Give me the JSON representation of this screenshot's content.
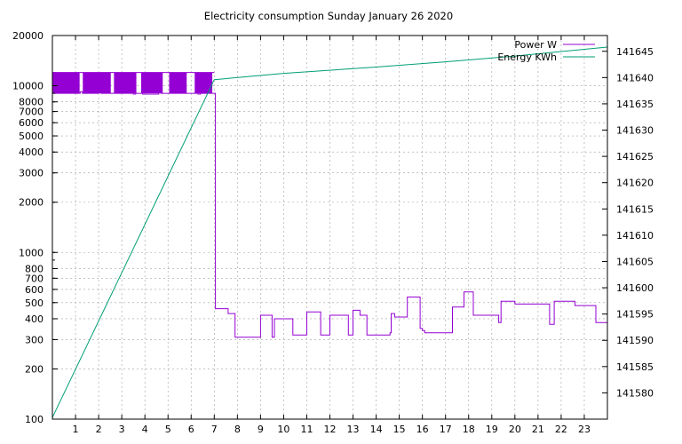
{
  "chart_data": {
    "type": "line",
    "title": "Electricity consumption Sunday January 26 2020",
    "x": {
      "range": [
        0,
        24
      ],
      "tick_labels": [
        "1",
        "2",
        "3",
        "4",
        "5",
        "6",
        "7",
        "8",
        "9",
        "10",
        "11",
        "12",
        "13",
        "14",
        "15",
        "16",
        "17",
        "18",
        "19",
        "20",
        "21",
        "22",
        "23"
      ],
      "grid": true
    },
    "y_left": {
      "scale": "log",
      "range": [
        100,
        20000
      ],
      "tick_labels": [
        "100",
        "200",
        "300",
        "400",
        "500",
        "600",
        "700",
        "800",
        "1000",
        "2000",
        "3000",
        "4000",
        "5000",
        "6000",
        "7000",
        "8000",
        "10000",
        "20000"
      ],
      "grid": true
    },
    "y_right": {
      "range": [
        141575,
        141648
      ],
      "tick_labels": [
        "141580",
        "141585",
        "141590",
        "141595",
        "141600",
        "141605",
        "141610",
        "141615",
        "141620",
        "141625",
        "141630",
        "141635",
        "141640",
        "141645"
      ]
    },
    "legend": {
      "placement": "top-right"
    },
    "series": [
      {
        "name": "Power W",
        "axis": "left",
        "color": "#9400d3",
        "oscillation": {
          "x_range": [
            0,
            7
          ],
          "low": 9000,
          "high": 12000
        },
        "x": [
          0,
          0.1,
          1.0,
          1.2,
          1.3,
          1.4,
          2.0,
          2.1,
          2.3,
          2.4,
          3.5,
          3.6,
          3.8,
          3.9,
          4.6,
          4.7,
          5.3,
          5.4,
          6.2,
          6.3,
          6.4,
          6.6,
          7.0,
          7.05,
          7.6,
          7.9,
          8.9,
          9.0,
          9.5,
          9.6,
          9.7,
          10.4,
          10.5,
          11.0,
          11.6,
          12.0,
          12.6,
          12.8,
          13.0,
          13.3,
          13.6,
          13.7,
          14.6,
          14.65,
          14.8,
          15.35,
          15.9,
          16.0,
          16.1,
          17.0,
          17.3,
          17.8,
          18.2,
          19.3,
          19.4,
          20.0,
          21.5,
          21.7,
          22.6,
          23.5,
          24.0
        ],
        "y": [
          12000,
          9000,
          9000,
          9200,
          9000,
          9000,
          9100,
          9000,
          9000,
          9000,
          8900,
          9000,
          9000,
          8900,
          9100,
          9000,
          9000,
          9000,
          9000,
          8900,
          9000,
          9000,
          9000,
          460,
          430,
          310,
          310,
          420,
          310,
          400,
          400,
          320,
          320,
          440,
          320,
          420,
          420,
          320,
          450,
          420,
          320,
          320,
          330,
          430,
          410,
          540,
          350,
          340,
          330,
          330,
          470,
          580,
          420,
          380,
          510,
          490,
          370,
          510,
          480,
          380,
          510
        ]
      },
      {
        "name": "Energy KWh",
        "axis": "right",
        "color": "#009e73",
        "x": [
          0,
          7,
          10,
          14,
          17,
          20,
          24
        ],
        "y": [
          141575.3,
          141639.6,
          141640.8,
          141642.0,
          141643.0,
          141644.1,
          141645.8
        ]
      }
    ]
  }
}
